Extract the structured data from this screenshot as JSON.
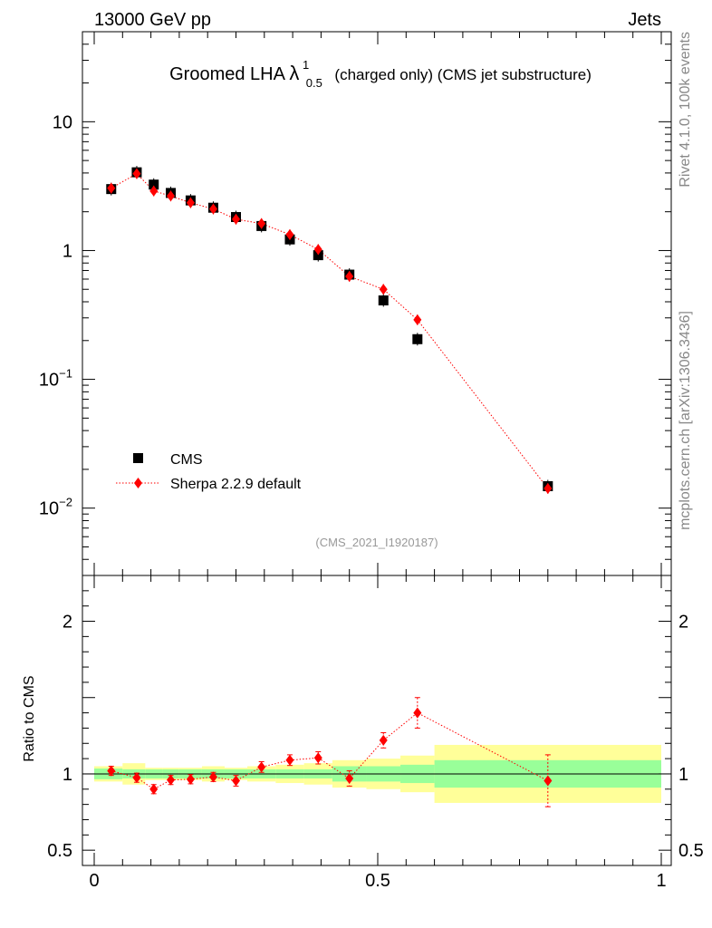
{
  "header": {
    "left": "13000 GeV pp",
    "right": "Jets"
  },
  "side_labels": {
    "top": "Rivet 4.1.0,  100k events",
    "bottom": "mcplots.cern.ch [arXiv:1306.3436]"
  },
  "chart_data": {
    "type": "scatter",
    "title": {
      "main": "Groomed LHA",
      "lambda": "λ",
      "sup": "1",
      "sub": "0.5",
      "rest": "(charged only) (CMS jet substructure)"
    },
    "analysis_id": "(CMS_2021_I1920187)",
    "xlim": [
      0,
      1
    ],
    "x_ticks": [
      {
        "value": 0,
        "label": "0"
      },
      {
        "value": 0.5,
        "label": "0.5"
      },
      {
        "value": 1,
        "label": "1"
      }
    ],
    "main_panel": {
      "yscale": "log",
      "ylim": [
        0.003,
        50
      ],
      "y_ticks": [
        {
          "value": 10,
          "base": "10",
          "exp": ""
        },
        {
          "value": 1,
          "base": "1",
          "exp": ""
        },
        {
          "value": 0.1,
          "base": "10",
          "exp": "−1"
        },
        {
          "value": 0.01,
          "base": "10",
          "exp": "−2"
        }
      ]
    },
    "ratio_panel": {
      "ylabel": "Ratio to CMS",
      "ylim": [
        0.4,
        2.3
      ],
      "y_ticks": [
        {
          "value": 2,
          "label": "2"
        },
        {
          "value": 1,
          "label": "1"
        },
        {
          "value": 0.5,
          "label": "0.5"
        }
      ]
    },
    "legend": {
      "placement": "lower-left",
      "entries": [
        "CMS",
        "Sherpa 2.2.9 default"
      ]
    },
    "series": [
      {
        "name": "CMS",
        "bins": [
          {
            "lo": 0.0,
            "hi": 0.05,
            "x": 0.03,
            "y": 3.0
          },
          {
            "lo": 0.05,
            "hi": 0.09,
            "x": 0.075,
            "y": 4.05
          },
          {
            "lo": 0.09,
            "hi": 0.12,
            "x": 0.105,
            "y": 3.25
          },
          {
            "lo": 0.12,
            "hi": 0.15,
            "x": 0.135,
            "y": 2.8
          },
          {
            "lo": 0.15,
            "hi": 0.19,
            "x": 0.17,
            "y": 2.45
          },
          {
            "lo": 0.19,
            "hi": 0.23,
            "x": 0.21,
            "y": 2.15
          },
          {
            "lo": 0.23,
            "hi": 0.27,
            "x": 0.25,
            "y": 1.82
          },
          {
            "lo": 0.27,
            "hi": 0.32,
            "x": 0.295,
            "y": 1.55
          },
          {
            "lo": 0.32,
            "hi": 0.37,
            "x": 0.345,
            "y": 1.22
          },
          {
            "lo": 0.37,
            "hi": 0.42,
            "x": 0.395,
            "y": 0.92
          },
          {
            "lo": 0.42,
            "hi": 0.48,
            "x": 0.45,
            "y": 0.65
          },
          {
            "lo": 0.48,
            "hi": 0.54,
            "x": 0.51,
            "y": 0.41
          },
          {
            "lo": 0.54,
            "hi": 0.6,
            "x": 0.57,
            "y": 0.205
          },
          {
            "lo": 0.6,
            "hi": 1.0,
            "x": 0.8,
            "y": 0.0148
          }
        ],
        "band_inner": [
          0.035,
          0.03,
          0.03,
          0.03,
          0.03,
          0.03,
          0.03,
          0.03,
          0.03,
          0.03,
          0.05,
          0.05,
          0.06,
          0.09
        ],
        "band_outer": [
          0.05,
          0.07,
          0.04,
          0.04,
          0.04,
          0.05,
          0.04,
          0.05,
          0.06,
          0.07,
          0.09,
          0.1,
          0.12,
          0.19
        ]
      },
      {
        "name": "Sherpa 2.2.9 default",
        "color": "#ff0000",
        "points": [
          {
            "x": 0.03,
            "y": 3.05,
            "ratio": 1.02,
            "ratio_err": 0.03
          },
          {
            "x": 0.075,
            "y": 3.95,
            "ratio": 0.975,
            "ratio_err": 0.03
          },
          {
            "x": 0.105,
            "y": 2.9,
            "ratio": 0.9,
            "ratio_err": 0.03
          },
          {
            "x": 0.135,
            "y": 2.65,
            "ratio": 0.96,
            "ratio_err": 0.03
          },
          {
            "x": 0.17,
            "y": 2.35,
            "ratio": 0.965,
            "ratio_err": 0.03
          },
          {
            "x": 0.21,
            "y": 2.1,
            "ratio": 0.98,
            "ratio_err": 0.03
          },
          {
            "x": 0.25,
            "y": 1.75,
            "ratio": 0.955,
            "ratio_err": 0.035
          },
          {
            "x": 0.295,
            "y": 1.62,
            "ratio": 1.045,
            "ratio_err": 0.035
          },
          {
            "x": 0.345,
            "y": 1.33,
            "ratio": 1.09,
            "ratio_err": 0.035
          },
          {
            "x": 0.395,
            "y": 1.02,
            "ratio": 1.105,
            "ratio_err": 0.04
          },
          {
            "x": 0.45,
            "y": 0.63,
            "ratio": 0.97,
            "ratio_err": 0.05
          },
          {
            "x": 0.51,
            "y": 0.5,
            "ratio": 1.22,
            "ratio_err": 0.05
          },
          {
            "x": 0.57,
            "y": 0.29,
            "ratio": 1.4,
            "ratio_err": 0.1
          },
          {
            "x": 0.8,
            "y": 0.0142,
            "ratio": 0.955,
            "ratio_err": 0.17
          }
        ]
      }
    ]
  }
}
